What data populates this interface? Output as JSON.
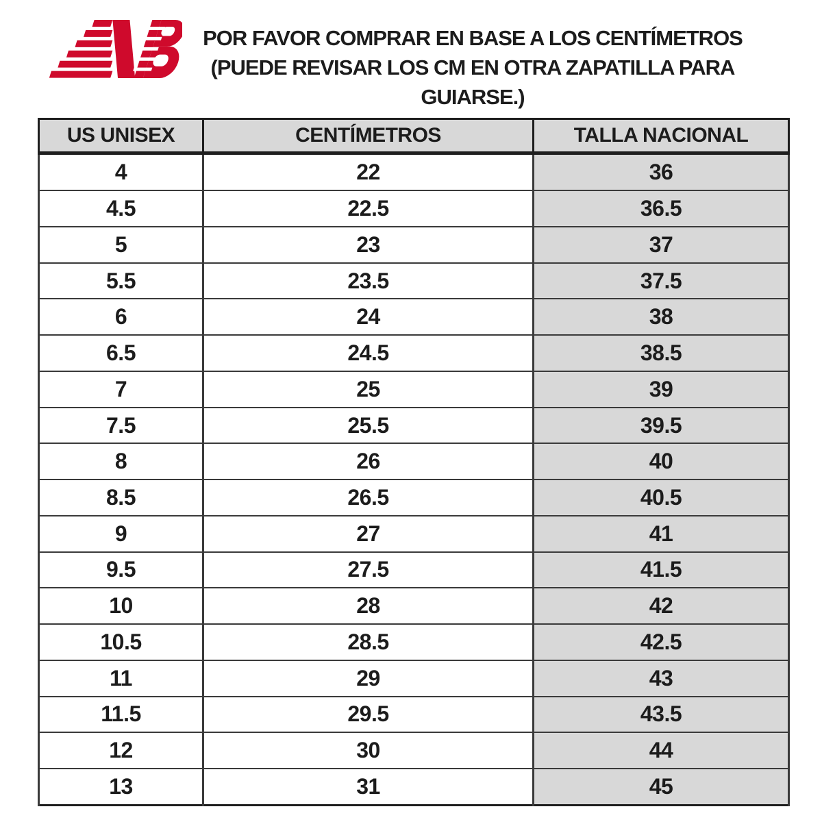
{
  "brand": {
    "name": "New Balance",
    "logo_icon": "nb-flying-logo",
    "logo_color": "#cf0a2c"
  },
  "notice": {
    "lines": [
      "POR FAVOR COMPRAR EN BASE A LOS CENTÍMETROS",
      "(PUEDE REVISAR LOS CM EN OTRA ZAPATILLA PARA",
      "GUIARSE.)"
    ]
  },
  "chart_data": {
    "type": "table",
    "columns": [
      "US UNISEX",
      "CENTÍMETROS",
      "TALLA NACIONAL"
    ],
    "rows": [
      [
        "4",
        "22",
        "36"
      ],
      [
        "4.5",
        "22.5",
        "36.5"
      ],
      [
        "5",
        "23",
        "37"
      ],
      [
        "5.5",
        "23.5",
        "37.5"
      ],
      [
        "6",
        "24",
        "38"
      ],
      [
        "6.5",
        "24.5",
        "38.5"
      ],
      [
        "7",
        "25",
        "39"
      ],
      [
        "7.5",
        "25.5",
        "39.5"
      ],
      [
        "8",
        "26",
        "40"
      ],
      [
        "8.5",
        "26.5",
        "40.5"
      ],
      [
        "9",
        "27",
        "41"
      ],
      [
        "9.5",
        "27.5",
        "41.5"
      ],
      [
        "10",
        "28",
        "42"
      ],
      [
        "10.5",
        "28.5",
        "42.5"
      ],
      [
        "11",
        "29",
        "43"
      ],
      [
        "11.5",
        "29.5",
        "43.5"
      ],
      [
        "12",
        "30",
        "44"
      ],
      [
        "13",
        "31",
        "45"
      ]
    ],
    "styles": {
      "header_bg": "#d8d8d8",
      "shade_col_bg": "#d8d8d8",
      "outer_border": "#1e1e1e",
      "grid_line": "#3a3a3a",
      "text": "#1c1c1c"
    },
    "layout": {
      "shaded_column_index": 2,
      "grid": "on"
    }
  }
}
